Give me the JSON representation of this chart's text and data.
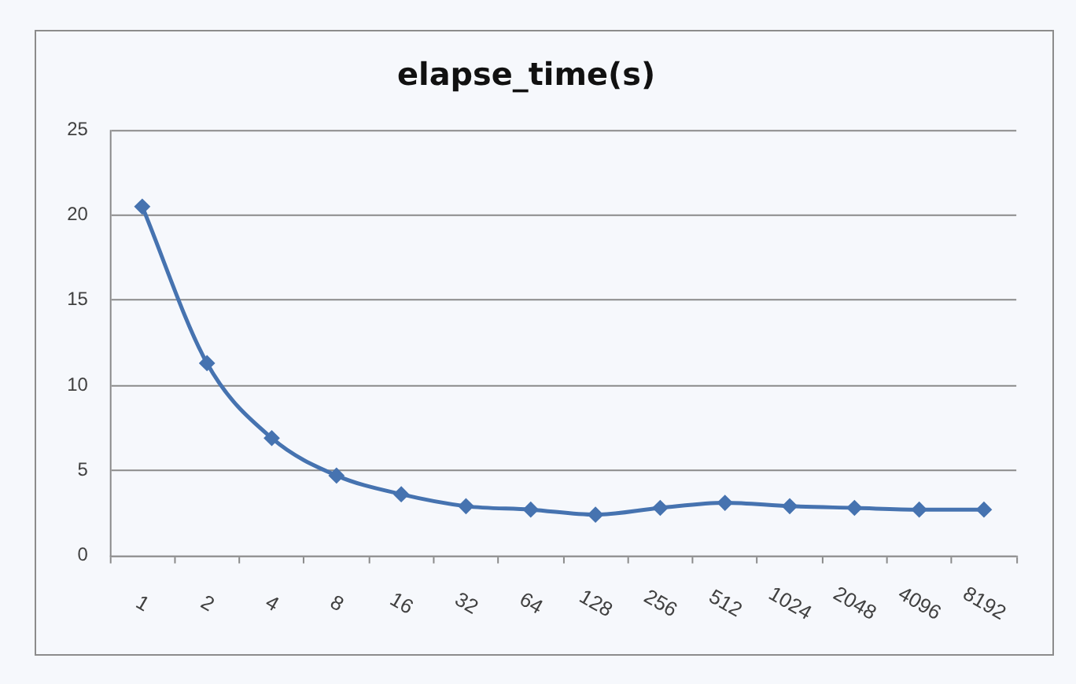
{
  "chart_data": {
    "type": "line",
    "title": "elapse_time(s)",
    "categories": [
      "1",
      "2",
      "4",
      "8",
      "16",
      "32",
      "64",
      "128",
      "256",
      "512",
      "1024",
      "2048",
      "4096",
      "8192"
    ],
    "values": [
      20.5,
      11.3,
      6.9,
      4.7,
      3.6,
      2.9,
      2.7,
      2.4,
      2.8,
      3.1,
      2.9,
      2.8,
      2.7,
      2.7
    ],
    "color": "#4673b0",
    "ylim": [
      0,
      25
    ],
    "yticks": [
      0,
      5,
      10,
      15,
      20,
      25
    ],
    "grid": "y",
    "marker": "diamond",
    "line_style": "solid",
    "legend": false
  }
}
